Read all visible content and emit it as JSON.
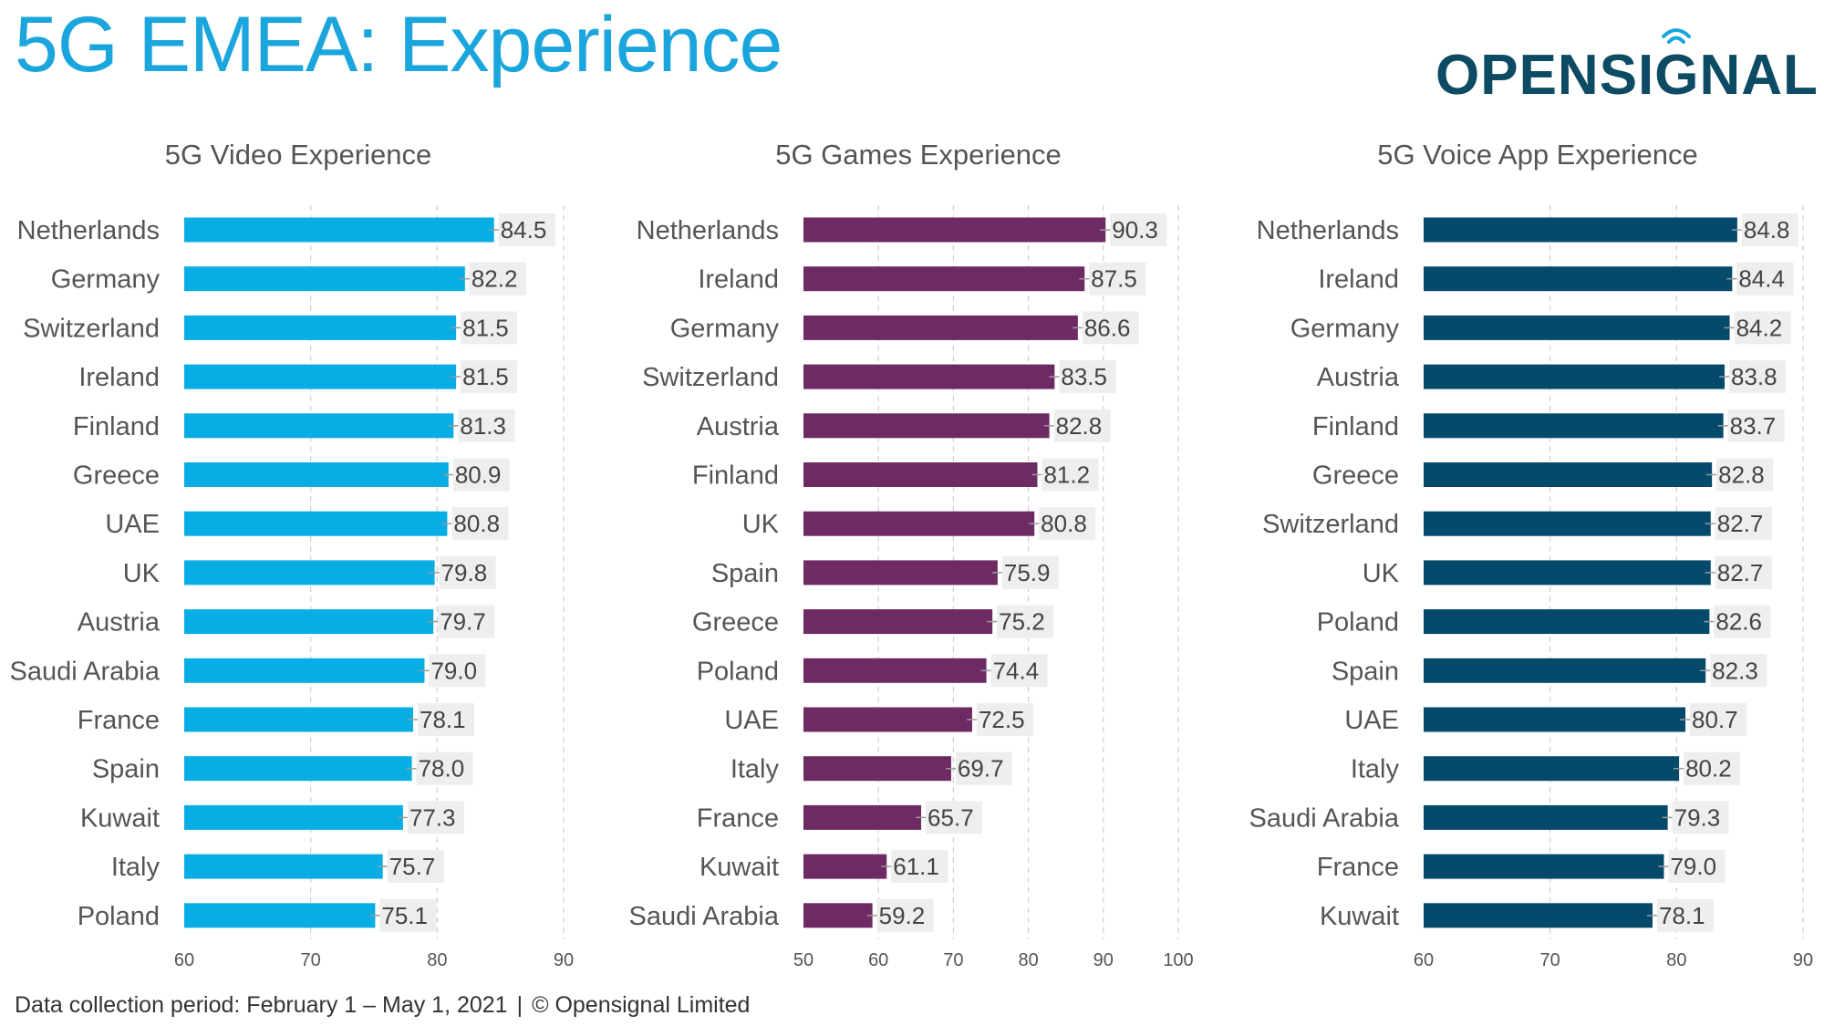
{
  "header": {
    "title": "5G EMEA: Experience"
  },
  "logo": {
    "text": "OPENSIGNAL",
    "icon": "signal-wave-icon",
    "color": "#0d4a63"
  },
  "footer": {
    "period": "Data collection period: February 1 – May 1, 2021",
    "separator": "|",
    "copyright": "© Opensignal Limited"
  },
  "chart_data": [
    {
      "type": "bar",
      "orientation": "horizontal",
      "title": "5G Video Experience",
      "color": "#08ade4",
      "categories": [
        "Netherlands",
        "Germany",
        "Switzerland",
        "Ireland",
        "Finland",
        "Greece",
        "UAE",
        "UK",
        "Austria",
        "Saudi Arabia",
        "France",
        "Spain",
        "Kuwait",
        "Italy",
        "Poland"
      ],
      "values": [
        84.5,
        82.2,
        81.5,
        81.5,
        81.3,
        80.9,
        80.8,
        79.8,
        79.7,
        79.0,
        78.1,
        78.0,
        77.3,
        75.7,
        75.1
      ],
      "labels": [
        "84.5",
        "82.2",
        "81.5",
        "81.5",
        "81.3",
        "80.9",
        "80.8",
        "79.8",
        "79.7",
        "79.0",
        "78.1",
        "78.0",
        "77.3",
        "75.7",
        "75.1"
      ],
      "xlim": [
        60,
        90
      ],
      "ticks": [
        60,
        70,
        80,
        90
      ],
      "grid": "vertical dashed",
      "error_bars": true
    },
    {
      "type": "bar",
      "orientation": "horizontal",
      "title": "5G Games Experience",
      "color": "#6e2a63",
      "categories": [
        "Netherlands",
        "Ireland",
        "Germany",
        "Switzerland",
        "Austria",
        "Finland",
        "UK",
        "Spain",
        "Greece",
        "Poland",
        "UAE",
        "Italy",
        "France",
        "Kuwait",
        "Saudi Arabia"
      ],
      "values": [
        90.3,
        87.5,
        86.6,
        83.5,
        82.8,
        81.2,
        80.8,
        75.9,
        75.2,
        74.4,
        72.5,
        69.7,
        65.7,
        61.1,
        59.2
      ],
      "labels": [
        "90.3",
        "87.5",
        "86.6",
        "83.5",
        "82.8",
        "81.2",
        "80.8",
        "75.9",
        "75.2",
        "74.4",
        "72.5",
        "69.7",
        "65.7",
        "61.1",
        "59.2"
      ],
      "xlim": [
        50,
        100
      ],
      "ticks": [
        50,
        60,
        70,
        80,
        90,
        100
      ],
      "grid": "vertical dashed",
      "error_bars": true
    },
    {
      "type": "bar",
      "orientation": "horizontal",
      "title": "5G Voice App Experience",
      "color": "#064a6b",
      "categories": [
        "Netherlands",
        "Ireland",
        "Germany",
        "Austria",
        "Finland",
        "Greece",
        "Switzerland",
        "UK",
        "Poland",
        "Spain",
        "UAE",
        "Italy",
        "Saudi Arabia",
        "France",
        "Kuwait"
      ],
      "values": [
        84.8,
        84.4,
        84.2,
        83.8,
        83.7,
        82.8,
        82.7,
        82.7,
        82.6,
        82.3,
        80.7,
        80.2,
        79.3,
        79.0,
        78.1
      ],
      "labels": [
        "84.8",
        "84.4",
        "84.2",
        "83.8",
        "83.7",
        "82.8",
        "82.7",
        "82.7",
        "82.6",
        "82.3",
        "80.7",
        "80.2",
        "79.3",
        "79.0",
        "78.1"
      ],
      "xlim": [
        60,
        90
      ],
      "ticks": [
        60,
        70,
        80,
        90
      ],
      "grid": "vertical dashed",
      "error_bars": true
    }
  ]
}
